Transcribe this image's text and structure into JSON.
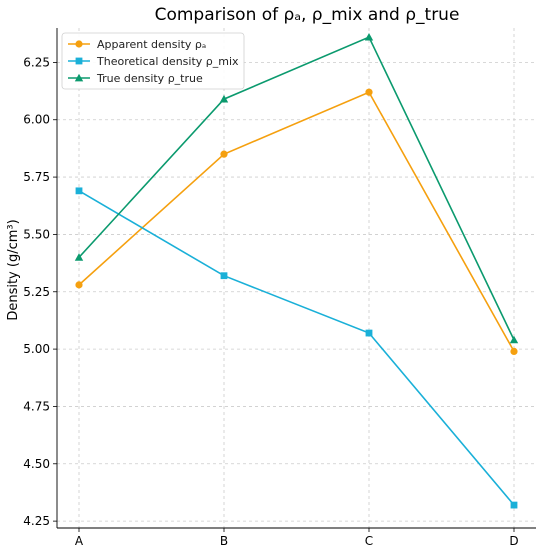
{
  "chart_data": {
    "type": "line",
    "title": "Comparison of ρₐ, ρ_mix and ρ_true",
    "xlabel": "",
    "ylabel": "Density (g/cm³)",
    "categories": [
      "A",
      "B",
      "C",
      "D"
    ],
    "ylim": [
      4.22,
      6.4
    ],
    "yticks": [
      4.25,
      4.5,
      4.75,
      5.0,
      5.25,
      5.5,
      5.75,
      6.0,
      6.25
    ],
    "ytick_labels": [
      "4.25",
      "4.50",
      "4.75",
      "5.00",
      "5.25",
      "5.50",
      "5.75",
      "6.00",
      "6.25"
    ],
    "grid": true,
    "legend_position": "top-left",
    "series": [
      {
        "name": "Apparent density ρₐ",
        "color": "#f5a00f",
        "marker": "circle",
        "values": [
          5.28,
          5.85,
          6.12,
          4.99
        ]
      },
      {
        "name": "Theoretical density ρ_mix",
        "color": "#1ab0d8",
        "marker": "square",
        "values": [
          5.69,
          5.32,
          5.07,
          4.32
        ]
      },
      {
        "name": "True density ρ_true",
        "color": "#0b9a6e",
        "marker": "triangle",
        "values": [
          5.4,
          6.09,
          6.36,
          5.04
        ]
      }
    ]
  }
}
